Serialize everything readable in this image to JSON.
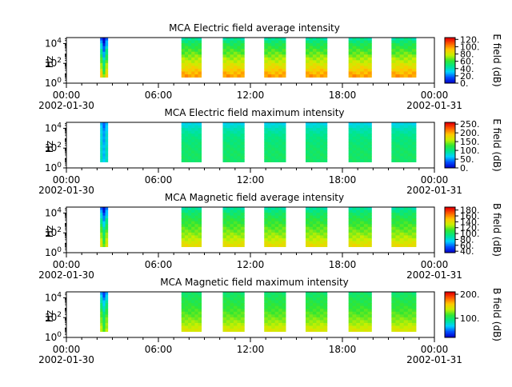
{
  "chart_data": [
    {
      "type": "heatmap",
      "title": "MCA  Electric field average intensity",
      "ylabel": "Hz",
      "colorbar_label": "E field (dB)",
      "colorbar_ticks": [
        "0.",
        "20.",
        "40.",
        "60.",
        "80.",
        "100.",
        "120."
      ],
      "colorbar_range": [
        0,
        125
      ],
      "y_ticks": [
        {
          "base": "10",
          "exp": "0"
        },
        {
          "base": "10",
          "exp": "2"
        },
        {
          "base": "10",
          "exp": "4"
        }
      ],
      "y_log_range_exp": [
        0,
        4.6
      ],
      "x_ticks": [
        {
          "time": "00:00",
          "date": "2002-01-30"
        },
        {
          "time": "06:00",
          "date": ""
        },
        {
          "time": "12:00",
          "date": ""
        },
        {
          "time": "18:00",
          "date": ""
        },
        {
          "time": "00:00",
          "date": "2002-01-31"
        }
      ],
      "x_range_hours": [
        0,
        24
      ],
      "colormap": [
        "#0000c8",
        "#0050ff",
        "#00d2ff",
        "#00e68c",
        "#32e632",
        "#c8f000",
        "#ffc800",
        "#ff6400",
        "#e60000"
      ],
      "time_segments_hours": [
        [
          2.2,
          2.7
        ],
        [
          7.5,
          8.8
        ],
        [
          10.2,
          11.6
        ],
        [
          12.9,
          14.3
        ],
        [
          15.6,
          17.0
        ],
        [
          18.4,
          19.9
        ],
        [
          21.2,
          22.8
        ]
      ],
      "frequency_profile_db": [
        {
          "log_hz": 4.5,
          "db": 45
        },
        {
          "log_hz": 4.0,
          "db": 55
        },
        {
          "log_hz": 3.2,
          "db": 65
        },
        {
          "log_hz": 2.2,
          "db": 78
        },
        {
          "log_hz": 1.3,
          "db": 92
        },
        {
          "log_hz": 0.6,
          "db": 102
        }
      ],
      "first_segment_profile_db": [
        {
          "log_hz": 4.5,
          "db": 18
        },
        {
          "log_hz": 3.5,
          "db": 40
        },
        {
          "log_hz": 2.5,
          "db": 60
        },
        {
          "log_hz": 1.5,
          "db": 80
        },
        {
          "log_hz": 0.6,
          "db": 95
        }
      ]
    },
    {
      "type": "heatmap",
      "title": "MCA  Electric field maximum intensity",
      "ylabel": "Hz",
      "colorbar_label": "E field (dB)",
      "colorbar_ticks": [
        "0.",
        "50.",
        "100.",
        "150.",
        "200.",
        "250."
      ],
      "colorbar_range": [
        0,
        260
      ],
      "y_ticks": [
        {
          "base": "10",
          "exp": "0"
        },
        {
          "base": "10",
          "exp": "2"
        },
        {
          "base": "10",
          "exp": "4"
        }
      ],
      "y_log_range_exp": [
        0,
        4.6
      ],
      "x_ticks": [
        {
          "time": "00:00",
          "date": "2002-01-30"
        },
        {
          "time": "06:00",
          "date": ""
        },
        {
          "time": "12:00",
          "date": ""
        },
        {
          "time": "18:00",
          "date": ""
        },
        {
          "time": "00:00",
          "date": "2002-01-31"
        }
      ],
      "x_range_hours": [
        0,
        24
      ],
      "colormap": [
        "#0000c8",
        "#0050ff",
        "#00d2ff",
        "#00e68c",
        "#32e632",
        "#c8f000",
        "#ffc800",
        "#ff6400",
        "#e60000"
      ],
      "time_segments_hours": [
        [
          2.2,
          2.7
        ],
        [
          7.5,
          8.8
        ],
        [
          10.2,
          11.6
        ],
        [
          12.9,
          14.3
        ],
        [
          15.6,
          17.0
        ],
        [
          18.4,
          19.9
        ],
        [
          21.2,
          22.8
        ]
      ],
      "frequency_profile_db": [
        {
          "log_hz": 4.5,
          "db": 70
        },
        {
          "log_hz": 4.0,
          "db": 85
        },
        {
          "log_hz": 3.2,
          "db": 100
        },
        {
          "log_hz": 2.2,
          "db": 108
        },
        {
          "log_hz": 1.3,
          "db": 112
        },
        {
          "log_hz": 0.6,
          "db": 110
        }
      ],
      "first_segment_profile_db": [
        {
          "log_hz": 4.5,
          "db": 60
        },
        {
          "log_hz": 3.5,
          "db": 75
        },
        {
          "log_hz": 2.5,
          "db": 80
        },
        {
          "log_hz": 1.5,
          "db": 85
        },
        {
          "log_hz": 0.6,
          "db": 85
        }
      ]
    },
    {
      "type": "heatmap",
      "title": "MCA  Magnetic field average intensity",
      "ylabel": "Hz",
      "colorbar_label": "B field (dB)",
      "colorbar_ticks": [
        "40.",
        "60.",
        "80.",
        "100.",
        "120.",
        "140.",
        "160.",
        "180."
      ],
      "colorbar_range": [
        35,
        190
      ],
      "y_ticks": [
        {
          "base": "10",
          "exp": "0"
        },
        {
          "base": "10",
          "exp": "2"
        },
        {
          "base": "10",
          "exp": "4"
        }
      ],
      "y_log_range_exp": [
        0,
        4.6
      ],
      "x_ticks": [
        {
          "time": "00:00",
          "date": "2002-01-30"
        },
        {
          "time": "06:00",
          "date": ""
        },
        {
          "time": "12:00",
          "date": ""
        },
        {
          "time": "18:00",
          "date": ""
        },
        {
          "time": "00:00",
          "date": "2002-01-31"
        }
      ],
      "x_range_hours": [
        0,
        24
      ],
      "colormap": [
        "#0000c8",
        "#0050ff",
        "#00d2ff",
        "#00e68c",
        "#32e632",
        "#c8f000",
        "#ffc800",
        "#ff6400",
        "#e60000"
      ],
      "time_segments_hours": [
        [
          2.2,
          2.7
        ],
        [
          7.5,
          8.8
        ],
        [
          10.2,
          11.6
        ],
        [
          12.9,
          14.3
        ],
        [
          15.6,
          17.0
        ],
        [
          18.4,
          19.9
        ],
        [
          21.2,
          22.8
        ]
      ],
      "frequency_profile_db": [
        {
          "log_hz": 4.5,
          "db": 90
        },
        {
          "log_hz": 4.0,
          "db": 100
        },
        {
          "log_hz": 3.2,
          "db": 110
        },
        {
          "log_hz": 2.2,
          "db": 120
        },
        {
          "log_hz": 1.3,
          "db": 132
        },
        {
          "log_hz": 0.6,
          "db": 145
        }
      ],
      "first_segment_profile_db": [
        {
          "log_hz": 4.5,
          "db": 60
        },
        {
          "log_hz": 3.5,
          "db": 85
        },
        {
          "log_hz": 2.5,
          "db": 110
        },
        {
          "log_hz": 1.5,
          "db": 130
        },
        {
          "log_hz": 0.6,
          "db": 140
        }
      ]
    },
    {
      "type": "heatmap",
      "title": "MCA  Magnetic field maximum intensity",
      "ylabel": "Hz",
      "colorbar_label": "B field (dB)",
      "colorbar_ticks": [
        "100.",
        "200."
      ],
      "colorbar_range": [
        20,
        210
      ],
      "y_ticks": [
        {
          "base": "10",
          "exp": "0"
        },
        {
          "base": "10",
          "exp": "2"
        },
        {
          "base": "10",
          "exp": "4"
        }
      ],
      "y_log_range_exp": [
        0,
        4.6
      ],
      "x_ticks": [
        {
          "time": "00:00",
          "date": "2002-01-30"
        },
        {
          "time": "06:00",
          "date": ""
        },
        {
          "time": "12:00",
          "date": ""
        },
        {
          "time": "18:00",
          "date": ""
        },
        {
          "time": "00:00",
          "date": "2002-01-31"
        }
      ],
      "x_range_hours": [
        0,
        24
      ],
      "colormap": [
        "#0000c8",
        "#0050ff",
        "#00d2ff",
        "#00e68c",
        "#32e632",
        "#c8f000",
        "#ffc800",
        "#ff6400",
        "#e60000"
      ],
      "time_segments_hours": [
        [
          2.2,
          2.7
        ],
        [
          7.5,
          8.8
        ],
        [
          10.2,
          11.6
        ],
        [
          12.9,
          14.3
        ],
        [
          15.6,
          17.0
        ],
        [
          18.4,
          19.9
        ],
        [
          21.2,
          22.8
        ]
      ],
      "frequency_profile_db": [
        {
          "log_hz": 4.5,
          "db": 100
        },
        {
          "log_hz": 4.0,
          "db": 105
        },
        {
          "log_hz": 3.2,
          "db": 112
        },
        {
          "log_hz": 2.2,
          "db": 122
        },
        {
          "log_hz": 1.3,
          "db": 135
        },
        {
          "log_hz": 0.6,
          "db": 148
        }
      ],
      "first_segment_profile_db": [
        {
          "log_hz": 4.5,
          "db": 60
        },
        {
          "log_hz": 3.5,
          "db": 90
        },
        {
          "log_hz": 2.5,
          "db": 115
        },
        {
          "log_hz": 1.5,
          "db": 130
        },
        {
          "log_hz": 0.6,
          "db": 140
        }
      ]
    }
  ]
}
